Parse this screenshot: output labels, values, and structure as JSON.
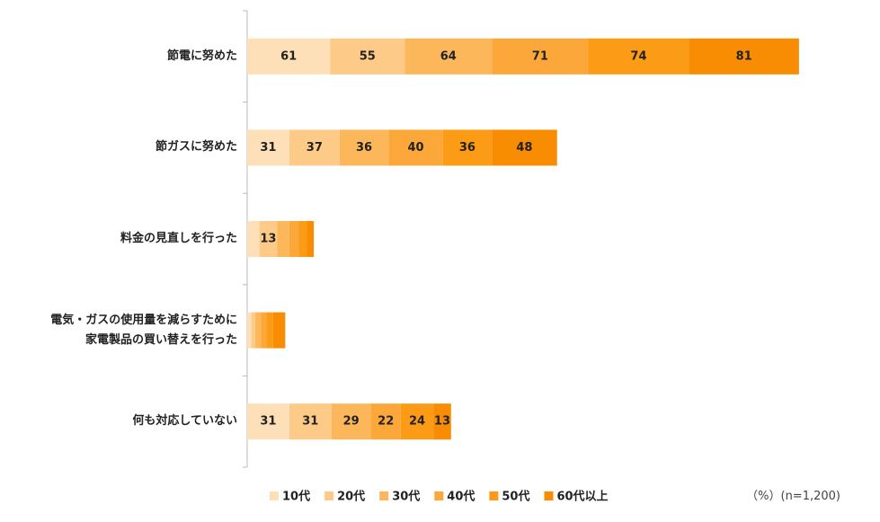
{
  "chart_data": {
    "type": "stacked-barh",
    "categories": [
      "節電に努めた",
      "節ガスに努めた",
      "料金の見直しを行った",
      "電気・ガスの使用量を減らすために\n家電製品の買い替えを行った",
      "何も対応していない"
    ],
    "series": [
      {
        "name": "10代",
        "color": "#fde0b8",
        "values": [
          61,
          31,
          9,
          3,
          31
        ]
      },
      {
        "name": "20代",
        "color": "#fdca88",
        "values": [
          55,
          37,
          13,
          3,
          31
        ]
      },
      {
        "name": "30代",
        "color": "#fcb75a",
        "values": [
          64,
          36,
          9,
          4,
          29
        ]
      },
      {
        "name": "40代",
        "color": "#fca73a",
        "values": [
          71,
          40,
          7,
          4,
          22
        ]
      },
      {
        "name": "50代",
        "color": "#fb9b16",
        "values": [
          74,
          36,
          6,
          5,
          24
        ]
      },
      {
        "name": "60代以上",
        "color": "#f88c02",
        "values": [
          81,
          48,
          5,
          9,
          13
        ]
      }
    ],
    "note": "（%）(n=1,200)"
  }
}
